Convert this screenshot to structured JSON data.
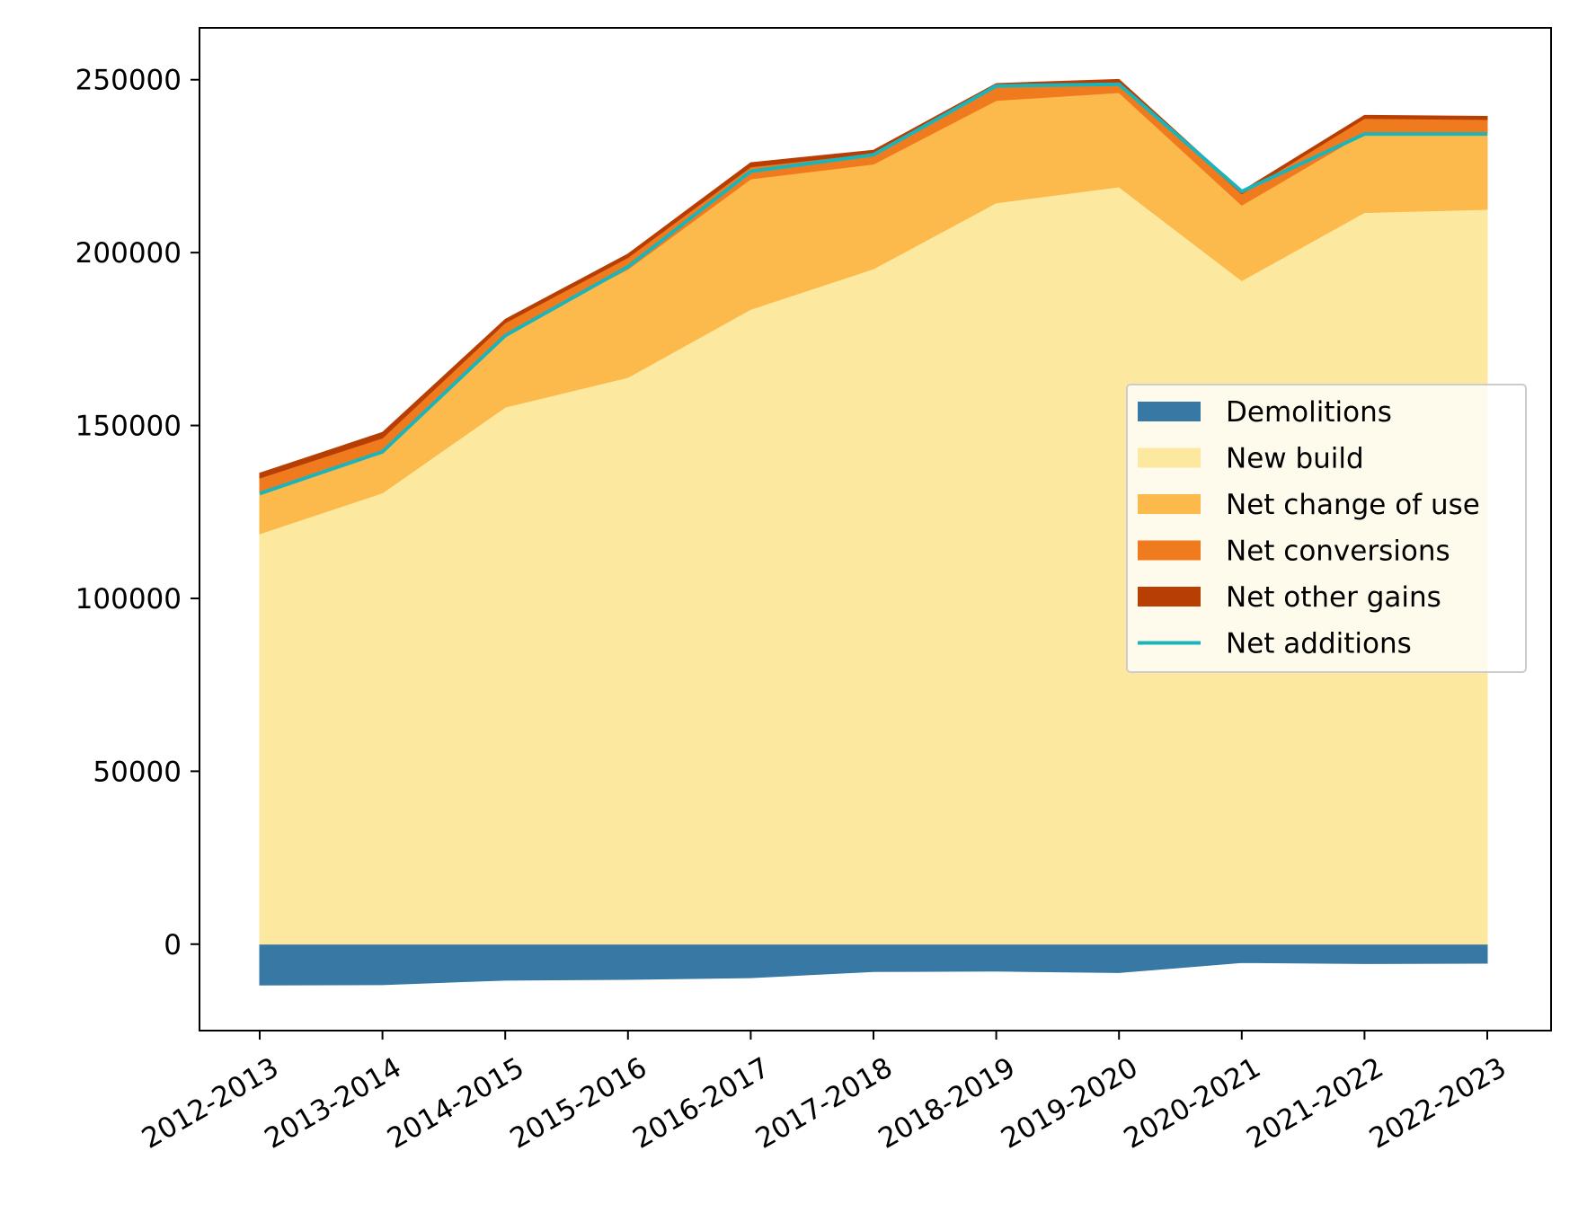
{
  "chart_data": {
    "type": "area",
    "stacked": true,
    "title": "",
    "xlabel": "",
    "ylabel": "",
    "categories": [
      "2012-2013",
      "2013-2014",
      "2014-2015",
      "2015-2016",
      "2016-2017",
      "2017-2018",
      "2018-2019",
      "2019-2020",
      "2020-2021",
      "2021-2022",
      "2022-2023"
    ],
    "ylim": [
      -25000,
      265000
    ],
    "yticks": [
      0,
      50000,
      100000,
      150000,
      200000,
      250000
    ],
    "ytick_labels": [
      "0",
      "50000",
      "100000",
      "150000",
      "200000",
      "250000"
    ],
    "grid": false,
    "legend_position": "center-right",
    "series": [
      {
        "name": "Demolitions",
        "kind": "area",
        "color": "#3778a4",
        "values": [
          -11800,
          -11700,
          -10400,
          -10200,
          -9700,
          -7900,
          -7800,
          -8200,
          -5300,
          -5600,
          -5500
        ]
      },
      {
        "name": "New build",
        "kind": "area",
        "color": "#fce99f",
        "values": [
          118700,
          130500,
          155300,
          163900,
          183600,
          195300,
          214400,
          219000,
          191900,
          211600,
          212500
        ]
      },
      {
        "name": "Net change of use",
        "kind": "area",
        "color": "#fcb94c",
        "values": [
          12000,
          11900,
          21300,
          31300,
          37700,
          30300,
          29600,
          27300,
          21800,
          22900,
          21900
        ]
      },
      {
        "name": "Net conversions",
        "kind": "area",
        "color": "#f07b1e",
        "values": [
          4100,
          4000,
          3100,
          3400,
          3500,
          3100,
          3800,
          2800,
          3300,
          4300,
          4100
        ]
      },
      {
        "name": "Net other gains",
        "kind": "area",
        "color": "#b83f04",
        "values": [
          1400,
          1600,
          1000,
          1000,
          1200,
          900,
          1100,
          1000,
          800,
          900,
          900
        ]
      },
      {
        "name": "Net additions",
        "kind": "line",
        "color": "#1ab5bb",
        "values": [
          130300,
          142400,
          176000,
          195900,
          223500,
          228300,
          248200,
          248700,
          217700,
          234300,
          234300
        ]
      }
    ]
  }
}
